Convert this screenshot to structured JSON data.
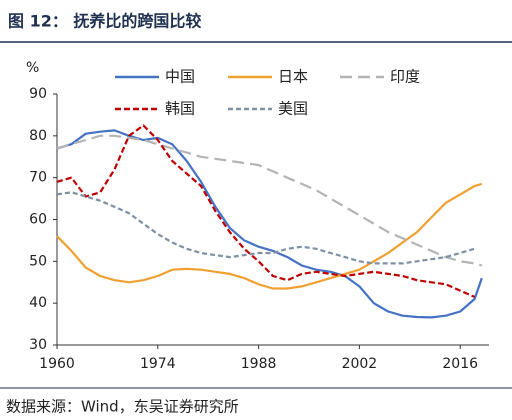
{
  "chart_data": {
    "type": "line",
    "title": "图 12：  抚养比的跨国比较",
    "y_unit": "%",
    "source": "数据来源：Wind，东吴证券研究所",
    "x": [
      1960,
      1962,
      1964,
      1966,
      1968,
      1970,
      1972,
      1974,
      1976,
      1978,
      1980,
      1982,
      1984,
      1986,
      1988,
      1990,
      1992,
      1994,
      1996,
      1998,
      2000,
      2002,
      2004,
      2006,
      2008,
      2010,
      2012,
      2014,
      2016,
      2018,
      2019
    ],
    "xlim": [
      1960,
      2020
    ],
    "xticks": [
      1960,
      1974,
      1988,
      2002,
      2016
    ],
    "ylim": [
      30,
      90
    ],
    "yticks": [
      30,
      40,
      50,
      60,
      70,
      80,
      90
    ],
    "series": [
      {
        "name": "中国",
        "color": "#4472c4",
        "dash": "none",
        "values": [
          77,
          78,
          80.5,
          81,
          81.3,
          80,
          79,
          79.5,
          78,
          74,
          69,
          63,
          58,
          55,
          53.5,
          52.5,
          51,
          49,
          48,
          47.5,
          46.5,
          44,
          40,
          38,
          37,
          36.7,
          36.6,
          37,
          38,
          41,
          46
        ]
      },
      {
        "name": "日本",
        "color": "#f0a030",
        "dash": "none",
        "values": [
          56,
          52.5,
          48.5,
          46.5,
          45.5,
          45,
          45.5,
          46.5,
          48,
          48.2,
          48,
          47.5,
          47,
          46,
          44.5,
          43.5,
          43.5,
          44,
          45,
          46,
          47,
          48,
          50,
          52,
          54.5,
          57,
          60.5,
          64,
          66,
          68,
          68.5
        ]
      },
      {
        "name": "印度",
        "color": "#b4b4b4",
        "dash": "12,6",
        "values": [
          77,
          78,
          79,
          80,
          80,
          79.5,
          79,
          78,
          77,
          76,
          75,
          74.5,
          74,
          73.5,
          73,
          71.5,
          70,
          68.5,
          67,
          65,
          63,
          61,
          59,
          57,
          55.5,
          54,
          52.5,
          51,
          50,
          49.5,
          49
        ]
      },
      {
        "name": "韩国",
        "color": "#c00000",
        "dash": "6,3",
        "values": [
          69,
          70,
          65.5,
          66.5,
          72,
          80,
          82.5,
          79,
          74,
          71,
          68,
          62,
          57,
          53,
          50,
          46.5,
          45.5,
          47,
          47.5,
          47,
          46.5,
          47,
          47.5,
          47,
          46.5,
          45.5,
          45,
          44.5,
          43,
          41.5,
          null
        ]
      },
      {
        "name": "美国",
        "color": "#7f8fa6",
        "dash": "5,3",
        "values": [
          66,
          66.5,
          65.5,
          64.5,
          63,
          61.5,
          59,
          56.5,
          54.5,
          53,
          52,
          51.5,
          51,
          51.5,
          52,
          52,
          53,
          53.5,
          53,
          52,
          51,
          50,
          49.5,
          49.5,
          49.5,
          50,
          50.5,
          51,
          52,
          53,
          null
        ]
      }
    ]
  }
}
